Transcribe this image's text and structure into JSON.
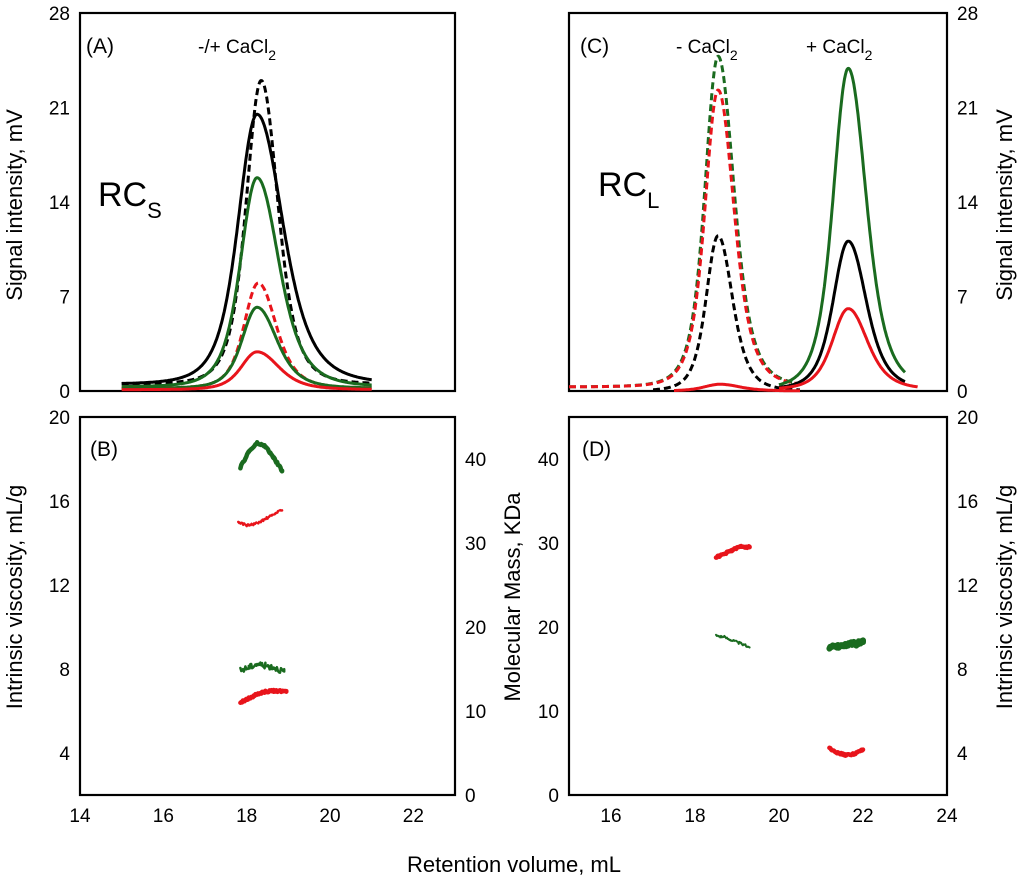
{
  "colors": {
    "black": "#000000",
    "red": "#e8141b",
    "green": "#1a6b1f"
  },
  "common": {
    "xlabel": "Retention volume, mL"
  },
  "chart_data": [
    {
      "id": "A",
      "type": "line",
      "panel_label": "(A)",
      "annotation": {
        "main": "-/+ CaCl",
        "sub": "2"
      },
      "rc_label": {
        "main": "RC",
        "sub": "S"
      },
      "ylabel": "Signal intensity, mV",
      "xlim": [
        14,
        23
      ],
      "ylim": [
        0,
        28
      ],
      "yticks": [
        0,
        7,
        14,
        21,
        28
      ],
      "series": [
        {
          "color": "black",
          "style": "dashed",
          "peak_x": 18.35,
          "peak_y": 22.5,
          "sl": 0.38,
          "sr": 0.42,
          "base": 0.5,
          "range": [
            15,
            21
          ]
        },
        {
          "color": "black",
          "style": "solid",
          "peak_x": 18.25,
          "peak_y": 20.0,
          "sl": 0.48,
          "sr": 0.65,
          "base": 0.5,
          "range": [
            15,
            21
          ]
        },
        {
          "color": "green",
          "style": "solid",
          "peak_x": 18.25,
          "peak_y": 15.5,
          "sl": 0.42,
          "sr": 0.55,
          "base": 0.3,
          "range": [
            15,
            21
          ]
        },
        {
          "color": "red",
          "style": "dashed",
          "peak_x": 18.28,
          "peak_y": 7.8,
          "sl": 0.36,
          "sr": 0.45,
          "base": 0.2,
          "range": [
            15,
            21
          ]
        },
        {
          "color": "green",
          "style": "solid",
          "peak_x": 18.25,
          "peak_y": 6.0,
          "sl": 0.38,
          "sr": 0.5,
          "base": 0.2,
          "range": [
            15,
            21
          ]
        },
        {
          "color": "red",
          "style": "solid",
          "peak_x": 18.25,
          "peak_y": 2.8,
          "sl": 0.4,
          "sr": 0.55,
          "base": 0.1,
          "range": [
            15,
            21
          ]
        }
      ]
    },
    {
      "id": "C",
      "type": "line",
      "panel_label": "(C)",
      "annotations": [
        {
          "main": "- CaCl",
          "sub": "2",
          "at_x": 18.5
        },
        {
          "main": "+ CaCl",
          "sub": "2",
          "at_x": 21.6
        }
      ],
      "rc_label": {
        "main": "RC",
        "sub": "L"
      },
      "ylabel": "Signal intensity, mV",
      "xlim": [
        15,
        24
      ],
      "ylim": [
        0,
        28
      ],
      "yticks": [
        0,
        7,
        14,
        21,
        28
      ],
      "series": [
        {
          "color": "green",
          "style": "dashed",
          "peak_x": 18.55,
          "peak_y": 24.5,
          "sl": 0.33,
          "sr": 0.4,
          "base": 0.3,
          "range": [
            15,
            20.5
          ]
        },
        {
          "color": "red",
          "style": "dashed",
          "peak_x": 18.55,
          "peak_y": 22.0,
          "sl": 0.33,
          "sr": 0.4,
          "base": 0.3,
          "range": [
            15,
            20.5
          ]
        },
        {
          "color": "black",
          "style": "dashed",
          "peak_x": 18.55,
          "peak_y": 11.5,
          "sl": 0.3,
          "sr": 0.36,
          "base": 0.0,
          "range": [
            17,
            20.5
          ]
        },
        {
          "color": "green",
          "style": "solid",
          "peak_x": 21.65,
          "peak_y": 23.8,
          "sl": 0.38,
          "sr": 0.45,
          "base": 0.1,
          "range": [
            20,
            23
          ]
        },
        {
          "color": "black",
          "style": "solid",
          "peak_x": 21.65,
          "peak_y": 11.0,
          "sl": 0.38,
          "sr": 0.45,
          "base": 0.1,
          "range": [
            20,
            23
          ]
        },
        {
          "color": "red",
          "style": "solid",
          "peak_x": 21.65,
          "peak_y": 6.0,
          "sl": 0.4,
          "sr": 0.48,
          "base": 0.1,
          "range": [
            20,
            23.3
          ]
        },
        {
          "color": "red",
          "style": "solid",
          "peak_x": 18.6,
          "peak_y": 0.5,
          "sl": 0.4,
          "sr": 0.5,
          "base": 0.0,
          "range": [
            17.5,
            20.5
          ]
        }
      ]
    },
    {
      "id": "B",
      "type": "scatter",
      "panel_label": "(B)",
      "ylabel_left": "Intrinsic viscosity, mL/g",
      "ylabel_right": "Molecular Mass, KDa",
      "xlim": [
        14,
        23
      ],
      "ylim_left": [
        2,
        20
      ],
      "ylim_right": [
        0,
        45
      ],
      "xticks": [
        14,
        16,
        18,
        20,
        22
      ],
      "yticks_left": [
        4,
        8,
        12,
        16,
        20
      ],
      "yticks_right": [
        0,
        10,
        20,
        30,
        40
      ],
      "series": [
        {
          "color": "green",
          "axis": "left",
          "width": 4.5,
          "noise": 0.05,
          "points": [
            [
              17.85,
              17.6
            ],
            [
              18.05,
              18.35
            ],
            [
              18.25,
              18.75
            ],
            [
              18.45,
              18.6
            ],
            [
              18.65,
              18.05
            ],
            [
              18.85,
              17.45
            ]
          ]
        },
        {
          "color": "red",
          "axis": "left",
          "width": 2.5,
          "dash": "2 2",
          "noise": 0.05,
          "points": [
            [
              17.8,
              15.0
            ],
            [
              18.0,
              14.85
            ],
            [
              18.2,
              14.9
            ],
            [
              18.4,
              15.1
            ],
            [
              18.6,
              15.3
            ],
            [
              18.85,
              15.6
            ]
          ]
        },
        {
          "color": "green",
          "axis": "right",
          "width": 2.5,
          "noise": 0.35,
          "points": [
            [
              17.85,
              14.8
            ],
            [
              18.05,
              15.2
            ],
            [
              18.25,
              15.6
            ],
            [
              18.45,
              15.4
            ],
            [
              18.65,
              15.2
            ],
            [
              18.9,
              14.7
            ]
          ]
        },
        {
          "color": "red",
          "axis": "right",
          "width": 4.5,
          "noise": 0.12,
          "points": [
            [
              17.85,
              11.0
            ],
            [
              18.05,
              11.5
            ],
            [
              18.25,
              12.0
            ],
            [
              18.45,
              12.3
            ],
            [
              18.65,
              12.4
            ],
            [
              18.95,
              12.3
            ]
          ]
        }
      ]
    },
    {
      "id": "D",
      "type": "scatter",
      "panel_label": "(D)",
      "ylabel_left": "",
      "ylabel_right": "Intrinsic viscosity, mL/g",
      "xlim": [
        15,
        24
      ],
      "ylim_left": [
        0,
        45
      ],
      "ylim_right": [
        2,
        20
      ],
      "xticks": [
        16,
        18,
        20,
        22,
        24
      ],
      "yticks_left": [
        0,
        10,
        20,
        30,
        40
      ],
      "yticks_right": [
        4,
        8,
        12,
        16,
        20
      ],
      "series": [
        {
          "color": "red",
          "axis": "left",
          "width": 4.5,
          "noise": 0.1,
          "points": [
            [
              18.5,
              28.3
            ],
            [
              18.7,
              28.7
            ],
            [
              18.9,
              29.2
            ],
            [
              19.1,
              29.6
            ],
            [
              19.3,
              29.5
            ]
          ]
        },
        {
          "color": "green",
          "axis": "left",
          "width": 2,
          "dash": "2 1",
          "noise": 0.15,
          "points": [
            [
              18.5,
              19.0
            ],
            [
              18.7,
              18.8
            ],
            [
              18.9,
              18.4
            ],
            [
              19.1,
              18.0
            ],
            [
              19.3,
              17.6
            ]
          ]
        },
        {
          "color": "green",
          "axis": "left",
          "width": 6,
          "noise": 0.25,
          "points": [
            [
              21.2,
              17.6
            ],
            [
              21.4,
              17.7
            ],
            [
              21.6,
              17.9
            ],
            [
              21.8,
              18.0
            ],
            [
              22.0,
              18.2
            ]
          ]
        },
        {
          "color": "red",
          "axis": "left",
          "width": 4.5,
          "noise": 0.1,
          "points": [
            [
              21.2,
              5.6
            ],
            [
              21.4,
              5.0
            ],
            [
              21.6,
              4.75
            ],
            [
              21.8,
              4.9
            ],
            [
              22.0,
              5.4
            ]
          ]
        }
      ]
    }
  ]
}
